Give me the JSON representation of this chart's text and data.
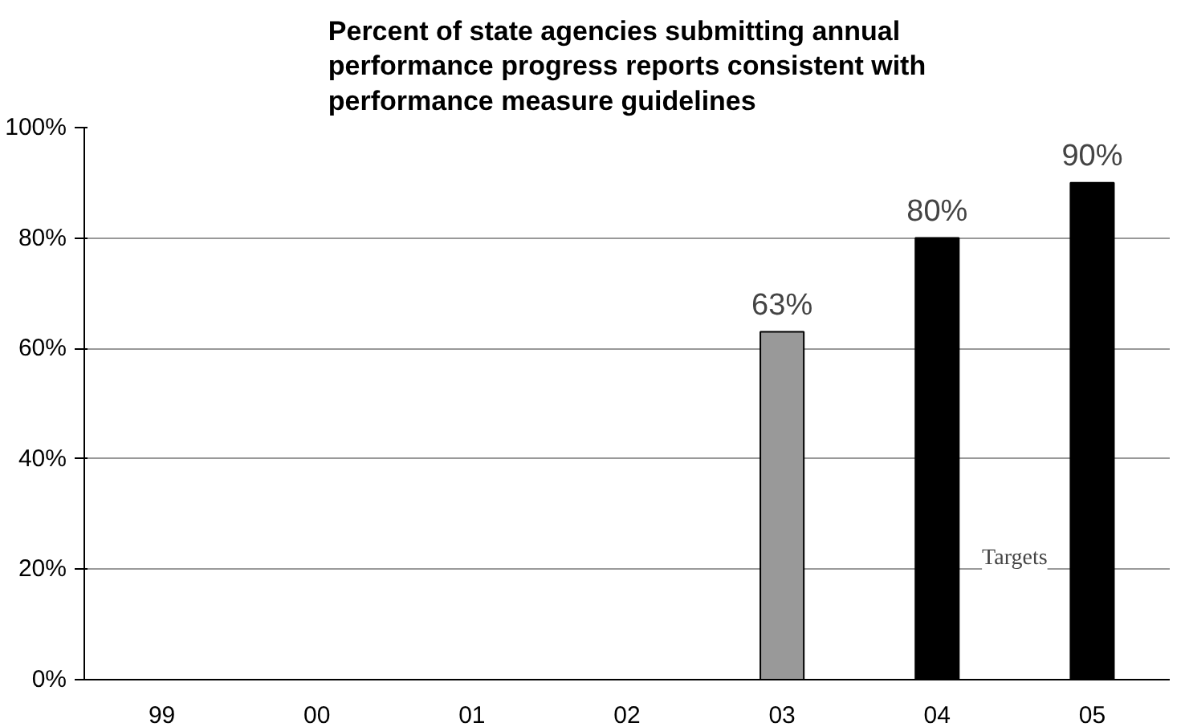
{
  "chart_data": {
    "type": "bar",
    "title": "Percent of state agencies submitting annual\nperformance progress reports consistent with\nperformance measure guidelines",
    "categories": [
      "99",
      "00",
      "01",
      "02",
      "03",
      "04",
      "05"
    ],
    "values": [
      null,
      null,
      null,
      null,
      63,
      80,
      90
    ],
    "colors": [
      "#000000",
      "#000000",
      "#000000",
      "#000000",
      "#999999",
      "#000000",
      "#000000"
    ],
    "value_labels": [
      null,
      null,
      null,
      null,
      "63%",
      "80%",
      "90%"
    ],
    "ylim": [
      0,
      100
    ],
    "yticks": [
      {
        "value": 0,
        "label": "0%"
      },
      {
        "value": 20,
        "label": "20%"
      },
      {
        "value": 40,
        "label": "40%"
      },
      {
        "value": 60,
        "label": "60%"
      },
      {
        "value": 80,
        "label": "80%"
      },
      {
        "value": 100,
        "label": "100%"
      }
    ],
    "annotations": [
      "Targets"
    ],
    "grid": "y"
  }
}
